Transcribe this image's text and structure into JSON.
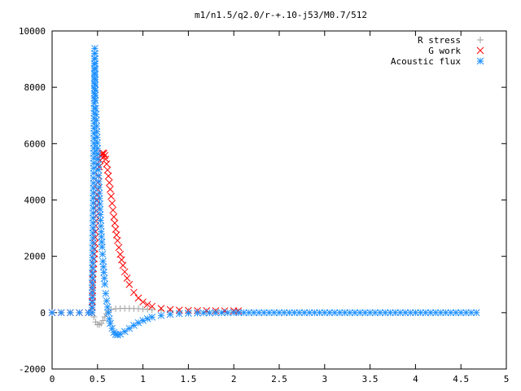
{
  "chart_data": {
    "type": "scatter",
    "title": "m1/n1.5/q2.0/r-+.10-j53/M0.7/512",
    "xlabel": "",
    "ylabel": "",
    "xlim": [
      0,
      5
    ],
    "ylim": [
      -2000,
      10000
    ],
    "x_ticks": [
      0,
      0.5,
      1,
      1.5,
      2,
      2.5,
      3,
      3.5,
      4,
      4.5,
      5
    ],
    "x_tick_labels": [
      "0",
      "0.5",
      "1",
      "1.5",
      "2",
      "2.5",
      "3",
      "3.5",
      "4",
      "4.5",
      "5"
    ],
    "y_ticks": [
      -2000,
      0,
      2000,
      4000,
      6000,
      8000,
      10000
    ],
    "y_tick_labels": [
      "-2000",
      "0",
      "2000",
      "4000",
      "6000",
      "8000",
      "10000"
    ],
    "grid": false,
    "legend_position": "top-right",
    "series": [
      {
        "name": "R stress",
        "marker": "plus",
        "color": "#a0a0a0",
        "points": [
          [
            0.0,
            0
          ],
          [
            0.1,
            0
          ],
          [
            0.2,
            0
          ],
          [
            0.3,
            0
          ],
          [
            0.4,
            0
          ],
          [
            0.44,
            0
          ],
          [
            0.46,
            -150
          ],
          [
            0.48,
            -330
          ],
          [
            0.5,
            -420
          ],
          [
            0.52,
            -430
          ],
          [
            0.54,
            -380
          ],
          [
            0.56,
            -280
          ],
          [
            0.58,
            -150
          ],
          [
            0.6,
            -40
          ],
          [
            0.62,
            50
          ],
          [
            0.65,
            110
          ],
          [
            0.7,
            140
          ],
          [
            0.75,
            150
          ],
          [
            0.8,
            150
          ],
          [
            0.85,
            150
          ],
          [
            0.9,
            145
          ],
          [
            0.95,
            140
          ],
          [
            1.0,
            130
          ],
          [
            1.05,
            118
          ],
          [
            1.1,
            105
          ],
          [
            1.2,
            85
          ],
          [
            1.3,
            70
          ],
          [
            1.4,
            58
          ],
          [
            1.5,
            48
          ],
          [
            1.6,
            42
          ],
          [
            1.7,
            38
          ],
          [
            1.8,
            36
          ],
          [
            1.9,
            35
          ],
          [
            2.0,
            34
          ],
          [
            2.05,
            34
          ]
        ]
      },
      {
        "name": "G work",
        "marker": "cross",
        "color": "#ff0000",
        "points": [
          [
            0.0,
            0
          ],
          [
            0.1,
            0
          ],
          [
            0.2,
            0
          ],
          [
            0.3,
            0
          ],
          [
            0.4,
            0
          ],
          [
            0.44,
            0
          ],
          [
            0.45,
            1380
          ],
          [
            0.47,
            2260
          ],
          [
            0.48,
            3080
          ],
          [
            0.49,
            3800
          ],
          [
            0.5,
            4380
          ],
          [
            0.51,
            4850
          ],
          [
            0.52,
            5180
          ],
          [
            0.53,
            5400
          ],
          [
            0.54,
            5550
          ],
          [
            0.55,
            5630
          ],
          [
            0.56,
            5670
          ],
          [
            0.57,
            5650
          ],
          [
            0.58,
            5580
          ],
          [
            0.59,
            5450
          ],
          [
            0.6,
            5280
          ],
          [
            0.62,
            4850
          ],
          [
            0.64,
            4380
          ],
          [
            0.66,
            3880
          ],
          [
            0.68,
            3400
          ],
          [
            0.7,
            2960
          ],
          [
            0.72,
            2560
          ],
          [
            0.75,
            2070
          ],
          [
            0.78,
            1680
          ],
          [
            0.8,
            1450
          ],
          [
            0.85,
            1000
          ],
          [
            0.9,
            720
          ],
          [
            0.95,
            520
          ],
          [
            1.0,
            380
          ],
          [
            1.05,
            290
          ],
          [
            1.1,
            225
          ],
          [
            1.2,
            150
          ],
          [
            1.3,
            110
          ],
          [
            1.4,
            90
          ],
          [
            1.5,
            78
          ],
          [
            1.6,
            72
          ],
          [
            1.7,
            70
          ],
          [
            1.8,
            68
          ],
          [
            1.9,
            66
          ],
          [
            2.0,
            65
          ],
          [
            2.05,
            65
          ]
        ]
      },
      {
        "name": "Acoustic flux",
        "marker": "star",
        "color": "#1e90ff",
        "points": [
          [
            0.0,
            0
          ],
          [
            0.1,
            0
          ],
          [
            0.2,
            0
          ],
          [
            0.3,
            0
          ],
          [
            0.4,
            0
          ],
          [
            0.44,
            0
          ],
          [
            0.46,
            5660
          ],
          [
            0.47,
            9380
          ],
          [
            0.475,
            7540
          ],
          [
            0.48,
            7250
          ],
          [
            0.49,
            6620
          ],
          [
            0.5,
            5830
          ],
          [
            0.51,
            5070
          ],
          [
            0.52,
            4240
          ],
          [
            0.53,
            3480
          ],
          [
            0.54,
            2870
          ],
          [
            0.55,
            2330
          ],
          [
            0.56,
            1820
          ],
          [
            0.57,
            1430
          ],
          [
            0.58,
            1010
          ],
          [
            0.59,
            680
          ],
          [
            0.6,
            420
          ],
          [
            0.61,
            200
          ],
          [
            0.62,
            0
          ],
          [
            0.63,
            -220
          ],
          [
            0.64,
            -380
          ],
          [
            0.66,
            -560
          ],
          [
            0.68,
            -700
          ],
          [
            0.7,
            -770
          ],
          [
            0.72,
            -790
          ],
          [
            0.75,
            -760
          ],
          [
            0.8,
            -670
          ],
          [
            0.85,
            -560
          ],
          [
            0.9,
            -450
          ],
          [
            0.95,
            -360
          ],
          [
            1.0,
            -280
          ],
          [
            1.05,
            -215
          ],
          [
            1.1,
            -160
          ],
          [
            1.2,
            -100
          ],
          [
            1.3,
            -60
          ],
          [
            1.4,
            -35
          ],
          [
            1.5,
            -20
          ],
          [
            1.6,
            -12
          ],
          [
            1.8,
            -5
          ],
          [
            2.0,
            0
          ],
          [
            2.5,
            0
          ],
          [
            3.0,
            0
          ],
          [
            3.5,
            0
          ],
          [
            4.0,
            0
          ],
          [
            4.5,
            0
          ],
          [
            4.67,
            0
          ]
        ]
      }
    ]
  }
}
